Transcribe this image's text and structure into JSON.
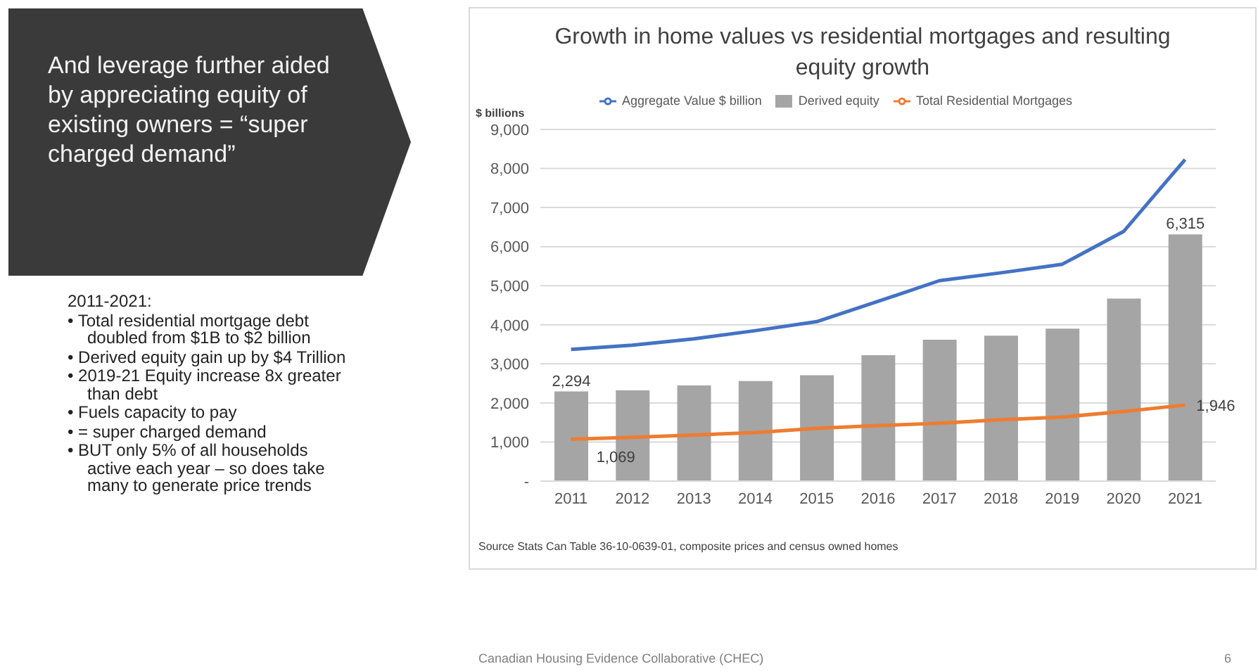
{
  "chart_data": {
    "type": "bar",
    "title": "Growth in home values vs residential mortgages and resulting equity growth",
    "ylabel": "$ billions",
    "categories": [
      "2011",
      "2012",
      "2013",
      "2014",
      "2015",
      "2016",
      "2017",
      "2018",
      "2019",
      "2020",
      "2021"
    ],
    "series": [
      {
        "name": "Derived equity",
        "color": "#a5a5a5",
        "values": [
          2294,
          2320,
          2450,
          2560,
          2710,
          3220,
          3620,
          3720,
          3900,
          4670,
          6315
        ],
        "value_labels": [
          "2,294",
          null,
          null,
          null,
          null,
          null,
          null,
          null,
          null,
          null,
          "6,315"
        ]
      },
      {
        "name": "Aggregate Value $ billion",
        "type": "line",
        "color": "#4472c4",
        "values": [
          3370,
          3480,
          3640,
          3850,
          4080,
          4600,
          5130,
          5330,
          5550,
          6390,
          8230
        ]
      },
      {
        "name": "Total Residential Mortgages",
        "type": "line",
        "color": "#ed7d31",
        "values": [
          1069,
          1120,
          1180,
          1240,
          1350,
          1420,
          1480,
          1570,
          1640,
          1780,
          1946
        ],
        "value_labels": [
          "1,069",
          null,
          null,
          null,
          null,
          null,
          null,
          null,
          null,
          null,
          "1,946"
        ]
      }
    ],
    "ylim": [
      0,
      9000
    ],
    "yticks": [
      {
        "value": 0,
        "label": "-"
      },
      {
        "value": 1000,
        "label": "1,000"
      },
      {
        "value": 2000,
        "label": "2,000"
      },
      {
        "value": 3000,
        "label": "3,000"
      },
      {
        "value": 4000,
        "label": "4,000"
      },
      {
        "value": 5000,
        "label": "5,000"
      },
      {
        "value": 6000,
        "label": "6,000"
      },
      {
        "value": 7000,
        "label": "7,000"
      },
      {
        "value": 8000,
        "label": "8,000"
      },
      {
        "value": 9000,
        "label": "9,000"
      }
    ],
    "grid": "y",
    "legend": "top",
    "marker": "none",
    "line_style": "solid",
    "annotations": [
      "And leverage further aided by appreciating equity of existing owners = “super charged demand”",
      "2011-2021:",
      "• Total residential mortgage debt doubled from $1B to $2 billion",
      "• Derived equity gain up by $4 Trillion",
      "• 2019-21 Equity increase 8x greater than debt",
      "• Fuels capacity to pay",
      "• = super charged demand",
      "• BUT only 5% of all households active each year – so does take many to generate price trends",
      "Source Stats Can Table 36-10-0639-01, composite prices and census owned homes",
      "Canadian Housing Evidence Collaborative (CHEC)",
      "6"
    ]
  }
}
